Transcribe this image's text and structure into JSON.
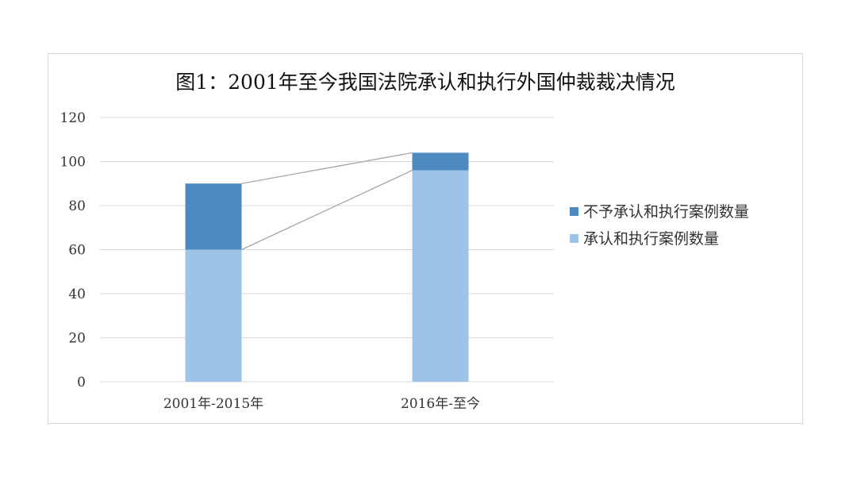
{
  "chart_data": {
    "type": "bar",
    "stacked": true,
    "title": "图1：2001年至今我国法院承认和执行外国仲裁裁决情况",
    "categories": [
      "2001年-2015年",
      "2016年-至今"
    ],
    "series": [
      {
        "name": "承认和执行案例数量",
        "values": [
          60,
          96
        ],
        "color": "#9dc3e6"
      },
      {
        "name": "不予承认和执行案例数量",
        "values": [
          30,
          8
        ],
        "color": "#4e8abf"
      }
    ],
    "legend_order": [
      1,
      0
    ],
    "ylim": [
      0,
      120
    ],
    "yticks": [
      0,
      20,
      40,
      60,
      80,
      100,
      120
    ],
    "ytick_labels": [
      "0",
      "20",
      "40",
      "60",
      "80",
      "100",
      "120"
    ],
    "grid": true,
    "series_lines": true,
    "legend_position": "right",
    "gridline_color": "#d9d9d9",
    "connector_color": "#a6a6a6"
  }
}
